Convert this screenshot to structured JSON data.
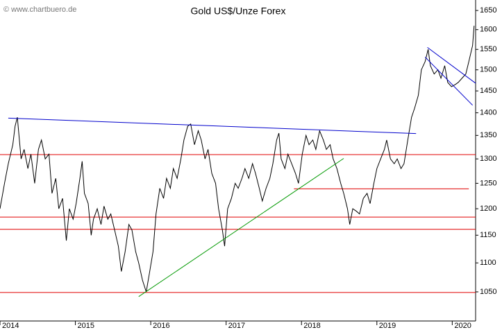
{
  "chart_data": {
    "type": "line",
    "title": "Gold US$/Unze Forex",
    "watermark": "© www.chartbuero.de",
    "log_scale": true,
    "xlim": [
      2014,
      2020.31
    ],
    "ylim": [
      1002,
      1678
    ],
    "xticks": [
      2014,
      2015,
      2016,
      2017,
      2018,
      2019,
      2020
    ],
    "yticks": [
      1050,
      1100,
      1150,
      1200,
      1250,
      1300,
      1350,
      1400,
      1450,
      1500,
      1550,
      1600,
      1650
    ],
    "series": [
      {
        "color": "#000000",
        "x": [
          2014.0,
          2014.06,
          2014.11,
          2014.17,
          2014.2,
          2014.23,
          2014.28,
          2014.32,
          2014.37,
          2014.41,
          2014.46,
          2014.51,
          2014.55,
          2014.6,
          2014.65,
          2014.69,
          2014.74,
          2014.78,
          2014.83,
          2014.88,
          2014.92,
          2014.97,
          2015.01,
          2015.06,
          2015.09,
          2015.12,
          2015.17,
          2015.21,
          2015.24,
          2015.29,
          2015.34,
          2015.38,
          2015.43,
          2015.47,
          2015.52,
          2015.57,
          2015.61,
          2015.66,
          2015.71,
          2015.75,
          2015.8,
          2015.84,
          2015.89,
          2015.94,
          2015.98,
          2016.03,
          2016.07,
          2016.12,
          2016.17,
          2016.21,
          2016.26,
          2016.3,
          2016.35,
          2016.4,
          2016.44,
          2016.49,
          2016.53,
          2016.58,
          2016.63,
          2016.67,
          2016.72,
          2016.76,
          2016.81,
          2016.86,
          2016.9,
          2016.95,
          2016.98,
          2017.02,
          2017.07,
          2017.12,
          2017.16,
          2017.21,
          2017.25,
          2017.3,
          2017.35,
          2017.39,
          2017.44,
          2017.48,
          2017.53,
          2017.58,
          2017.62,
          2017.67,
          2017.7,
          2017.73,
          2017.78,
          2017.82,
          2017.87,
          2017.92,
          2017.96,
          2018.01,
          2018.06,
          2018.1,
          2018.15,
          2018.19,
          2018.24,
          2018.29,
          2018.33,
          2018.38,
          2018.42,
          2018.47,
          2018.52,
          2018.56,
          2018.61,
          2018.64,
          2018.68,
          2018.73,
          2018.77,
          2018.82,
          2018.87,
          2018.91,
          2018.96,
          2019.0,
          2019.05,
          2019.1,
          2019.13,
          2019.18,
          2019.23,
          2019.27,
          2019.32,
          2019.36,
          2019.41,
          2019.46,
          2019.5,
          2019.55,
          2019.59,
          2019.64,
          2019.68,
          2019.71,
          2019.76,
          2019.81,
          2019.85,
          2019.9,
          2019.94,
          2019.99,
          2020.04,
          2020.08,
          2020.13,
          2020.18,
          2020.22,
          2020.27,
          2020.29
        ],
        "values": [
          1200,
          1250,
          1290,
          1330,
          1370,
          1390,
          1300,
          1320,
          1280,
          1310,
          1250,
          1320,
          1340,
          1300,
          1310,
          1230,
          1260,
          1200,
          1220,
          1140,
          1200,
          1180,
          1210,
          1260,
          1295,
          1230,
          1210,
          1150,
          1180,
          1200,
          1170,
          1205,
          1180,
          1190,
          1160,
          1130,
          1085,
          1120,
          1170,
          1160,
          1120,
          1100,
          1070,
          1050,
          1080,
          1120,
          1190,
          1240,
          1220,
          1260,
          1240,
          1280,
          1260,
          1300,
          1340,
          1370,
          1375,
          1330,
          1360,
          1340,
          1300,
          1320,
          1270,
          1250,
          1200,
          1160,
          1130,
          1200,
          1220,
          1250,
          1240,
          1260,
          1280,
          1260,
          1290,
          1270,
          1240,
          1215,
          1240,
          1260,
          1290,
          1340,
          1355,
          1300,
          1280,
          1310,
          1290,
          1270,
          1250,
          1310,
          1350,
          1330,
          1340,
          1320,
          1360,
          1340,
          1320,
          1330,
          1300,
          1280,
          1250,
          1230,
          1200,
          1170,
          1200,
          1195,
          1190,
          1220,
          1230,
          1210,
          1250,
          1280,
          1300,
          1320,
          1340,
          1300,
          1290,
          1300,
          1280,
          1290,
          1340,
          1390,
          1410,
          1440,
          1500,
          1520,
          1550,
          1510,
          1490,
          1500,
          1480,
          1510,
          1470,
          1460,
          1465,
          1470,
          1480,
          1490,
          1520,
          1560,
          1610
        ]
      }
    ],
    "levels": [
      {
        "value": 1309,
        "color": "#e00000"
      },
      {
        "value": 1239,
        "color": "#e00000",
        "x": [
          2017.9,
          2020.22
        ]
      },
      {
        "value": 1184,
        "color": "#e00000"
      },
      {
        "value": 1161,
        "color": "#e00000"
      },
      {
        "value": 1049,
        "color": "#e00000"
      }
    ],
    "trend_lines": [
      {
        "color": "#0000cc",
        "x": [
          2014.11,
          2019.52
        ],
        "values": [
          1388,
          1354
        ]
      },
      {
        "color": "#009900",
        "x": [
          2015.84,
          2018.56
        ],
        "values": [
          1042,
          1301
        ]
      },
      {
        "color": "#0000cc",
        "x": [
          2019.67,
          2020.31
        ],
        "values": [
          1555,
          1468
        ]
      },
      {
        "color": "#0000cc",
        "x": [
          2019.64,
          2020.27
        ],
        "values": [
          1531,
          1417
        ]
      }
    ]
  }
}
